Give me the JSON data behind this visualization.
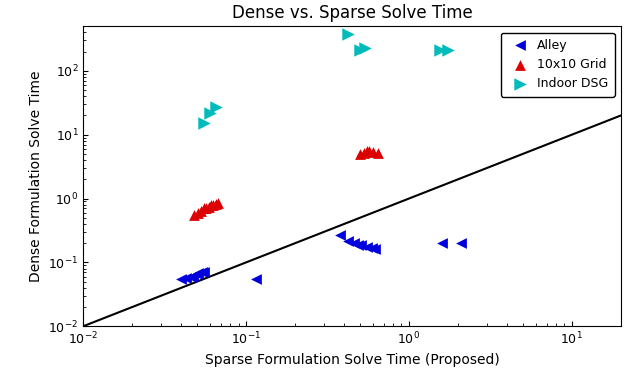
{
  "title": "Dense vs. Sparse Solve Time",
  "xlabel": "Sparse Formulation Solve Time (Proposed)",
  "ylabel": "Dense Formulation Solve Time",
  "diagonal_line": {
    "x": [
      0.01,
      20
    ],
    "y": [
      0.01,
      20
    ]
  },
  "alley": {
    "label": "Alley",
    "color": "#0000dd",
    "marker": "<",
    "size": 60,
    "x": [
      0.04,
      0.043,
      0.046,
      0.047,
      0.05,
      0.051,
      0.054,
      0.055,
      0.115,
      0.38,
      0.42,
      0.46,
      0.49,
      0.51,
      0.55,
      0.59,
      0.62,
      1.6,
      2.1
    ],
    "y": [
      0.055,
      0.058,
      0.06,
      0.062,
      0.065,
      0.068,
      0.07,
      0.072,
      0.055,
      0.27,
      0.22,
      0.2,
      0.19,
      0.185,
      0.175,
      0.17,
      0.165,
      0.2,
      0.2
    ]
  },
  "grid10": {
    "label": "10x10 Grid",
    "color": "#dd0000",
    "marker": "^",
    "size": 60,
    "x": [
      0.048,
      0.051,
      0.053,
      0.055,
      0.057,
      0.059,
      0.061,
      0.063,
      0.065,
      0.067,
      0.5,
      0.53,
      0.55,
      0.57,
      0.6,
      0.65
    ],
    "y": [
      0.55,
      0.6,
      0.65,
      0.7,
      0.72,
      0.75,
      0.78,
      0.8,
      0.82,
      0.85,
      5.0,
      5.2,
      5.5,
      5.5,
      5.3,
      5.2
    ]
  },
  "indoor": {
    "label": "Indoor DSG",
    "color": "#00bbbb",
    "marker": ">",
    "size": 80,
    "x": [
      0.055,
      0.06,
      0.065,
      0.42,
      0.5,
      0.54,
      1.55,
      1.75
    ],
    "y": [
      15.0,
      22.0,
      27.0,
      380.0,
      210.0,
      230.0,
      210.0,
      215.0
    ]
  },
  "xlim": [
    0.01,
    20
  ],
  "ylim": [
    0.01,
    500
  ],
  "title_fontsize": 12,
  "label_fontsize": 10,
  "legend_fontsize": 9
}
